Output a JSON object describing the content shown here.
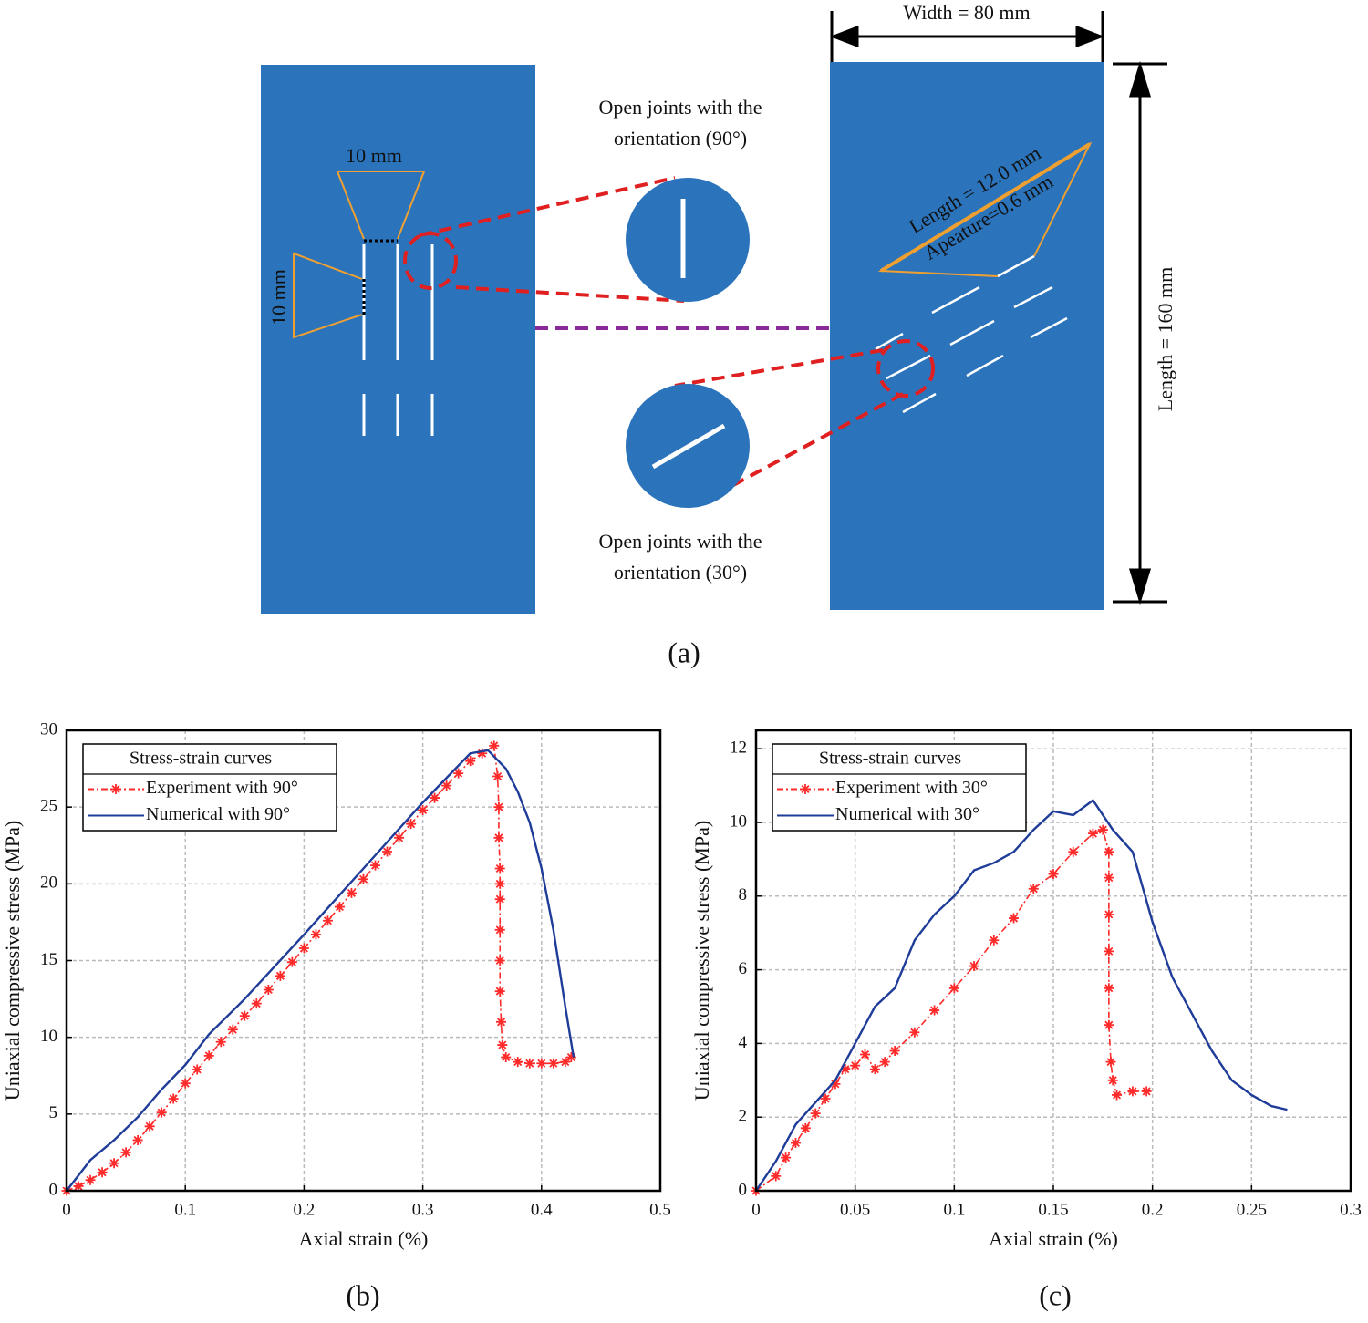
{
  "diagram": {
    "width_label": "Width = 80 mm",
    "length_label": "Length = 160 mm",
    "spacing_h_label": "10 mm",
    "spacing_v_label": "10 mm",
    "joint_length_label": "Length = 12.0 mm",
    "aperture_label": "Apeature=0.6 mm",
    "callout_90": [
      "Open joints with the",
      "orientation (90°)"
    ],
    "callout_30": [
      "Open joints with the",
      "orientation (30°)"
    ]
  },
  "panel_labels": [
    "(a)",
    "(b)",
    "(c)"
  ],
  "chart_data": [
    {
      "type": "line",
      "xlabel": "Axial strain (%)",
      "ylabel": "Uniaxial compressive stress (MPa)",
      "xlim": [
        0,
        0.5
      ],
      "ylim": [
        0,
        30
      ],
      "xticks": [
        0,
        0.1,
        0.2,
        0.3,
        0.4,
        0.5
      ],
      "yticks": [
        0,
        5,
        10,
        15,
        20,
        25,
        30
      ],
      "grid": true,
      "legend": "upper left",
      "legend_title": "Stress-strain curves",
      "series": [
        {
          "name": "Experiment with 90°",
          "color": "#ff2a2a",
          "line_style": "dashdot",
          "marker": "star",
          "x": [
            0,
            0.01,
            0.02,
            0.03,
            0.04,
            0.05,
            0.06,
            0.07,
            0.08,
            0.09,
            0.1,
            0.11,
            0.12,
            0.13,
            0.14,
            0.15,
            0.16,
            0.17,
            0.18,
            0.19,
            0.2,
            0.21,
            0.22,
            0.23,
            0.24,
            0.25,
            0.26,
            0.27,
            0.28,
            0.29,
            0.3,
            0.31,
            0.32,
            0.33,
            0.34,
            0.35,
            0.36,
            0.363,
            0.364,
            0.364,
            0.365,
            0.365,
            0.365,
            0.365,
            0.365,
            0.365,
            0.366,
            0.367,
            0.37,
            0.38,
            0.39,
            0.4,
            0.41,
            0.42,
            0.425
          ],
          "values": [
            0,
            0.3,
            0.7,
            1.2,
            1.8,
            2.5,
            3.3,
            4.2,
            5.1,
            6.0,
            7.0,
            7.9,
            8.8,
            9.7,
            10.5,
            11.4,
            12.2,
            13.1,
            14.0,
            14.9,
            15.8,
            16.7,
            17.6,
            18.5,
            19.4,
            20.3,
            21.2,
            22.1,
            23.0,
            23.9,
            24.8,
            25.6,
            26.4,
            27.2,
            28.0,
            28.5,
            29.0,
            27,
            25,
            23,
            21,
            20,
            19,
            17,
            15,
            13,
            11,
            9.5,
            8.7,
            8.4,
            8.3,
            8.3,
            8.3,
            8.4,
            8.7
          ]
        },
        {
          "name": "Numerical with 90°",
          "color": "#1f3c99",
          "line_style": "solid",
          "marker": "none",
          "x": [
            0,
            0.02,
            0.04,
            0.06,
            0.08,
            0.1,
            0.12,
            0.15,
            0.2,
            0.25,
            0.3,
            0.34,
            0.355,
            0.37,
            0.38,
            0.39,
            0.4,
            0.41,
            0.42,
            0.427
          ],
          "values": [
            0,
            2,
            3.3,
            4.8,
            6.6,
            8.2,
            10.2,
            12.5,
            16.7,
            21,
            25.3,
            28.5,
            28.7,
            27.5,
            26,
            24,
            21,
            17,
            12,
            8.7
          ]
        }
      ]
    },
    {
      "type": "line",
      "xlabel": "Axial strain (%)",
      "ylabel": "Uniaxial compressive stress (MPa)",
      "xlim": [
        0,
        0.3
      ],
      "ylim": [
        0,
        12.5
      ],
      "xticks": [
        0,
        0.05,
        0.1,
        0.15,
        0.2,
        0.25,
        0.3
      ],
      "yticks": [
        0,
        2,
        4,
        6,
        8,
        10,
        12
      ],
      "grid": true,
      "legend": "upper left",
      "legend_title": "Stress-strain curves",
      "series": [
        {
          "name": "Experiment with 30°",
          "color": "#ff2a2a",
          "line_style": "dashdot",
          "marker": "star",
          "x": [
            0,
            0.01,
            0.015,
            0.02,
            0.025,
            0.03,
            0.035,
            0.04,
            0.045,
            0.05,
            0.055,
            0.06,
            0.065,
            0.07,
            0.08,
            0.09,
            0.1,
            0.11,
            0.12,
            0.13,
            0.14,
            0.15,
            0.16,
            0.17,
            0.175,
            0.178,
            0.178,
            0.178,
            0.178,
            0.178,
            0.178,
            0.179,
            0.18,
            0.182,
            0.19,
            0.197
          ],
          "values": [
            0,
            0.4,
            0.9,
            1.3,
            1.7,
            2.1,
            2.5,
            2.9,
            3.3,
            3.4,
            3.7,
            3.3,
            3.5,
            3.8,
            4.3,
            4.9,
            5.5,
            6.1,
            6.8,
            7.4,
            8.2,
            8.6,
            9.2,
            9.7,
            9.8,
            9.2,
            8.5,
            7.5,
            6.5,
            5.5,
            4.5,
            3.5,
            3.0,
            2.6,
            2.7,
            2.7
          ]
        },
        {
          "name": "Numerical with 30°",
          "color": "#1f3c99",
          "line_style": "solid",
          "marker": "none",
          "x": [
            0,
            0.01,
            0.02,
            0.03,
            0.04,
            0.05,
            0.06,
            0.07,
            0.08,
            0.09,
            0.1,
            0.11,
            0.12,
            0.13,
            0.14,
            0.15,
            0.16,
            0.17,
            0.18,
            0.19,
            0.2,
            0.21,
            0.22,
            0.23,
            0.24,
            0.25,
            0.26,
            0.268
          ],
          "values": [
            0,
            0.8,
            1.8,
            2.4,
            3.0,
            4.0,
            5.0,
            5.5,
            6.8,
            7.5,
            8.0,
            8.7,
            8.9,
            9.2,
            9.8,
            10.3,
            10.2,
            10.6,
            9.8,
            9.2,
            7.3,
            5.8,
            4.8,
            3.8,
            3.0,
            2.6,
            2.3,
            2.2
          ]
        }
      ]
    }
  ]
}
